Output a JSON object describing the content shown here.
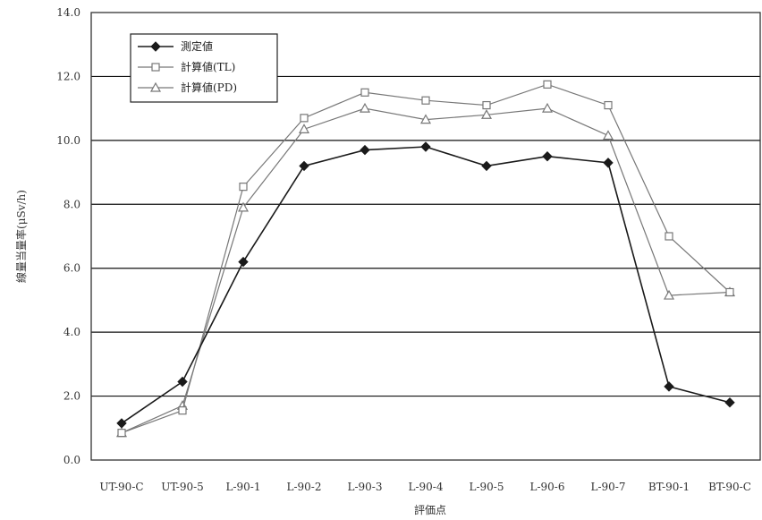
{
  "chart_data": {
    "type": "line",
    "title": "",
    "xlabel": "評価点",
    "ylabel": "線量当量率(μSv/h)",
    "ylim": [
      0,
      14
    ],
    "yticks": [
      "0.0",
      "2.0",
      "4.0",
      "6.0",
      "8.0",
      "10.0",
      "12.0",
      "14.0"
    ],
    "grid": "horizontal",
    "legend_position": "top-left",
    "categories": [
      "UT-90-C",
      "UT-90-5",
      "L-90-1",
      "L-90-2",
      "L-90-3",
      "L-90-4",
      "L-90-5",
      "L-90-6",
      "L-90-7",
      "BT-90-1",
      "BT-90-C"
    ],
    "series": [
      {
        "name": "測定値",
        "marker": "filled-diamond",
        "color": "#1a1a1a",
        "values": [
          1.15,
          2.45,
          6.2,
          9.2,
          9.7,
          9.8,
          9.2,
          9.5,
          9.3,
          2.3,
          1.8
        ]
      },
      {
        "name": "計算値(TL)",
        "marker": "open-square",
        "color": "#777777",
        "values": [
          0.85,
          1.55,
          8.55,
          10.7,
          11.5,
          11.25,
          11.1,
          11.75,
          11.1,
          7.0,
          5.25
        ]
      },
      {
        "name": "計算値(PD)",
        "marker": "open-triangle",
        "color": "#777777",
        "values": [
          0.85,
          1.7,
          7.9,
          10.35,
          11.0,
          10.65,
          10.8,
          11.0,
          10.15,
          5.15,
          5.25
        ]
      }
    ]
  }
}
